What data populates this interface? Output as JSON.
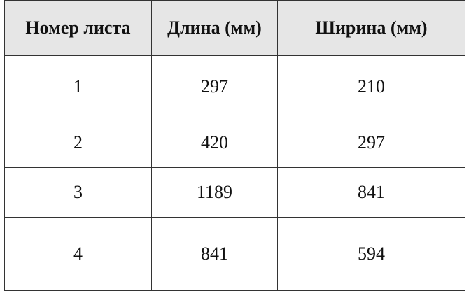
{
  "table": {
    "headers": [
      "Номер листа",
      "Длина (мм)",
      "Ширина (мм)"
    ],
    "rows": [
      [
        "1",
        "297",
        "210"
      ],
      [
        "2",
        "420",
        "297"
      ],
      [
        "3",
        "1189",
        "841"
      ],
      [
        "4",
        "841",
        "594"
      ]
    ]
  }
}
